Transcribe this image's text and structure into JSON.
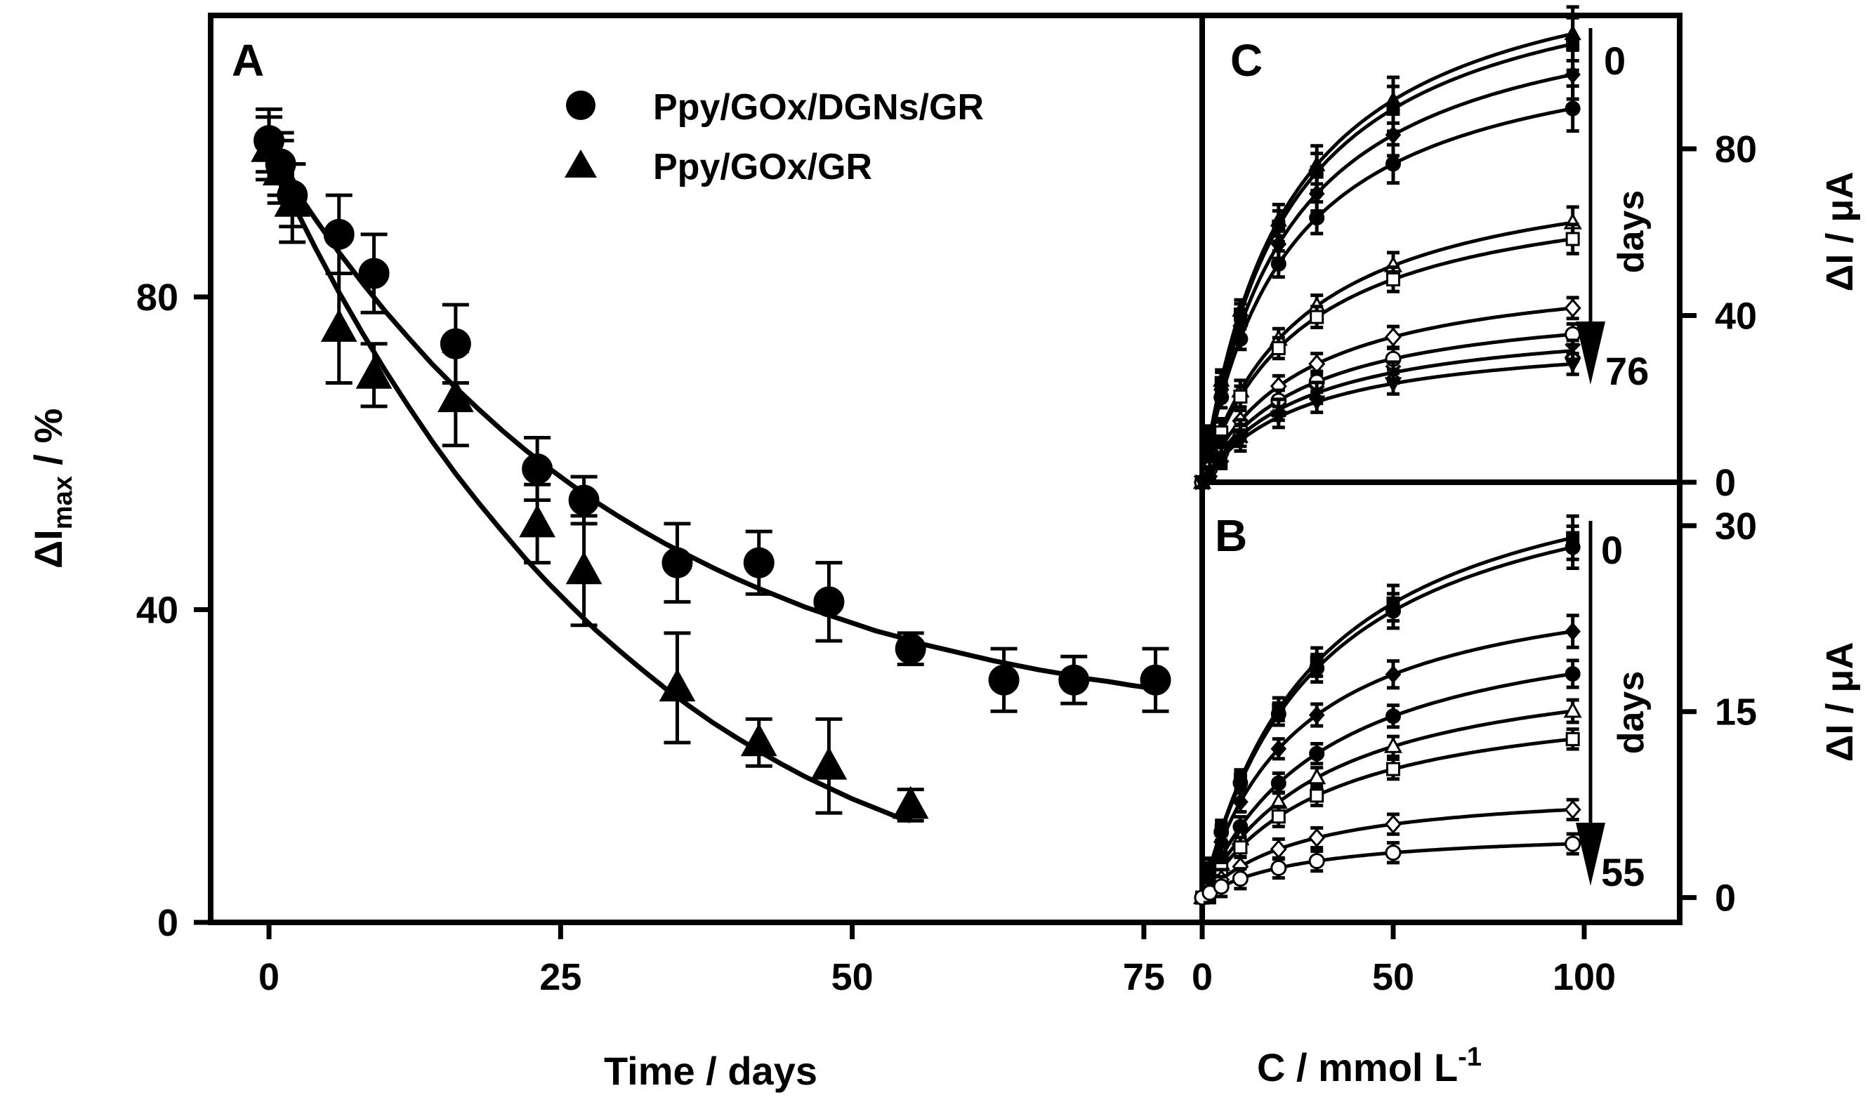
{
  "chart_data": [
    {
      "panel": "A",
      "type": "scatter",
      "panel_label": "A",
      "xlabel": "Time / days",
      "ylabel_main": "ΔI",
      "ylabel_sub": "max",
      "ylabel_unit": " / %",
      "xlim": [
        -5,
        80
      ],
      "ylim": [
        0,
        116
      ],
      "xticks": [
        0,
        25,
        50,
        75
      ],
      "yticks": [
        0,
        40,
        80
      ],
      "series": [
        {
          "name": "Ppy/GOx/DGNs/GR",
          "marker": "circle",
          "x": [
            0,
            1,
            2,
            6,
            9,
            16,
            23,
            27,
            35,
            42,
            48,
            55,
            63,
            69,
            76
          ],
          "y": [
            100,
            97,
            93,
            88,
            83,
            74,
            58,
            54,
            46,
            46,
            41,
            35,
            31,
            31,
            31
          ],
          "err": [
            4,
            4,
            4,
            5,
            5,
            5,
            4,
            3,
            5,
            4,
            5,
            2,
            4,
            3,
            4
          ],
          "fit_x": [
            0,
            2,
            4,
            6,
            8,
            10,
            12,
            14,
            16,
            18,
            20,
            22,
            24,
            26,
            28,
            30,
            32,
            34,
            36,
            38,
            40,
            42,
            44,
            46,
            48,
            50,
            52,
            54,
            56,
            58,
            60,
            62,
            64,
            66,
            68,
            70,
            72,
            74,
            76
          ],
          "fit_y": [
            99.0,
            94.3,
            89.9,
            85.7,
            81.8,
            78.1,
            74.7,
            71.4,
            68.4,
            65.6,
            62.9,
            60.4,
            58.1,
            55.9,
            53.8,
            51.9,
            50.1,
            48.4,
            46.9,
            45.4,
            44.0,
            42.7,
            41.5,
            40.3,
            39.3,
            38.3,
            37.3,
            36.5,
            35.6,
            34.9,
            34.2,
            33.5,
            32.9,
            32.3,
            31.8,
            31.2,
            30.8,
            30.3,
            29.9
          ]
        },
        {
          "name": "Ppy/GOx/GR",
          "marker": "triangle",
          "x": [
            0,
            1,
            2,
            6,
            9,
            16,
            23,
            27,
            35,
            42,
            48,
            55
          ],
          "y": [
            99,
            96,
            92,
            76,
            70,
            67,
            51,
            45,
            30,
            23,
            20,
            15
          ],
          "err": [
            4,
            4,
            5,
            7,
            4,
            6,
            5,
            7,
            7,
            3,
            6,
            2
          ],
          "fit_x": [
            0,
            2,
            4,
            6,
            8,
            10,
            12,
            14,
            16,
            18,
            20,
            22,
            24,
            26,
            28,
            30,
            32,
            34,
            36,
            38,
            40,
            42,
            44,
            46,
            48,
            50,
            52,
            54,
            55
          ],
          "fit_y": [
            98.5,
            92.1,
            86.2,
            80.6,
            75.4,
            70.5,
            65.9,
            61.5,
            57.4,
            53.6,
            50.0,
            46.5,
            43.3,
            40.3,
            37.4,
            34.8,
            32.3,
            29.9,
            27.7,
            25.6,
            23.7,
            21.9,
            20.2,
            18.6,
            17.2,
            15.8,
            14.6,
            13.4,
            13.0
          ]
        }
      ],
      "legend": [
        "Ppy/GOx/DGNs/GR",
        "Ppy/GOx/GR"
      ],
      "legend_position": "top-center"
    },
    {
      "panel": "C",
      "type": "line",
      "panel_label": "C",
      "ylabel": "ΔI / μA",
      "ylabel_side": "right",
      "xlim": [
        0,
        125
      ],
      "ylim": [
        0,
        112
      ],
      "yticks": [
        0,
        40,
        80
      ],
      "arrow_top_label": "0",
      "arrow_bottom_label": "76",
      "arrow_mid_label": "days",
      "x_points": [
        0,
        2,
        5,
        10,
        20,
        30,
        50,
        97
      ],
      "series": [
        {
          "day_index": 1,
          "marker": "triangle",
          "filled": true,
          "vmax": 132,
          "km": 22
        },
        {
          "day_index": 2,
          "marker": "square",
          "filled": true,
          "vmax": 129,
          "km": 22
        },
        {
          "day_index": 3,
          "marker": "diamond",
          "filled": true,
          "vmax": 120,
          "km": 22
        },
        {
          "day_index": 4,
          "marker": "circle",
          "filled": true,
          "vmax": 110,
          "km": 22
        },
        {
          "day_index": 5,
          "marker": "triangle",
          "filled": false,
          "vmax": 79,
          "km": 26
        },
        {
          "day_index": 6,
          "marker": "square",
          "filled": false,
          "vmax": 74,
          "km": 26
        },
        {
          "day_index": 7,
          "marker": "diamond",
          "filled": false,
          "vmax": 53,
          "km": 26
        },
        {
          "day_index": 8,
          "marker": "circle",
          "filled": false,
          "vmax": 45,
          "km": 26
        },
        {
          "day_index": 9,
          "marker": "x",
          "filled": true,
          "vmax": 40,
          "km": 26
        },
        {
          "day_index": 10,
          "marker": "triangle-down",
          "filled": true,
          "vmax": 36,
          "km": 26
        }
      ]
    },
    {
      "panel": "B",
      "type": "line",
      "panel_label": "B",
      "xlabel": "C / mmol L",
      "xlabel_sup": "-1",
      "ylabel": "ΔI / μA",
      "ylabel_side": "right",
      "xlim": [
        0,
        125
      ],
      "ylim": [
        -2,
        33.5
      ],
      "xticks": [
        0,
        50,
        100
      ],
      "yticks": [
        0,
        15,
        30
      ],
      "arrow_top_label": "0",
      "arrow_bottom_label": "55",
      "arrow_mid_label": "days",
      "x_points": [
        0,
        2,
        5,
        10,
        20,
        30,
        50,
        97
      ],
      "series": [
        {
          "day_index": 1,
          "marker": "square",
          "filled": true,
          "vmax": 38,
          "km": 30
        },
        {
          "day_index": 2,
          "marker": "circle",
          "filled": true,
          "vmax": 37,
          "km": 30
        },
        {
          "day_index": 3,
          "marker": "diamond",
          "filled": true,
          "vmax": 27,
          "km": 25
        },
        {
          "day_index": 4,
          "marker": "circle",
          "filled": true,
          "vmax": 24,
          "km": 32
        },
        {
          "day_index": 5,
          "marker": "triangle",
          "filled": false,
          "vmax": 20,
          "km": 32
        },
        {
          "day_index": 6,
          "marker": "square",
          "filled": false,
          "vmax": 17,
          "km": 32
        },
        {
          "day_index": 7,
          "marker": "diamond",
          "filled": false,
          "vmax": 9,
          "km": 26
        },
        {
          "day_index": 8,
          "marker": "circle",
          "filled": false,
          "vmax": 5.5,
          "km": 26
        }
      ]
    }
  ]
}
